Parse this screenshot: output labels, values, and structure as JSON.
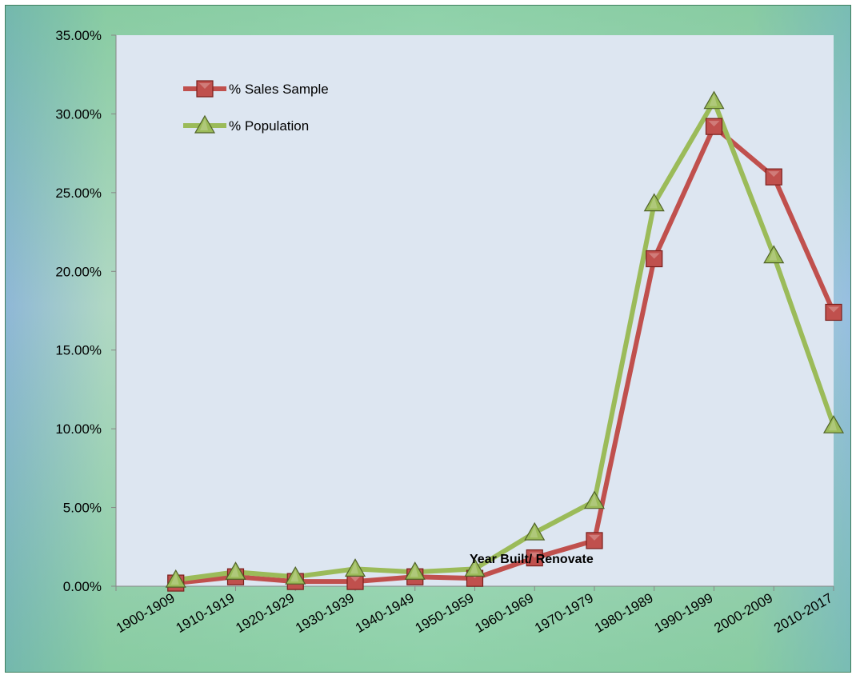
{
  "chart_data": {
    "type": "line",
    "title": "",
    "xlabel": "Year Built/ Renovate",
    "ylabel": "",
    "categories": [
      "1900-1909",
      "1910-1919",
      "1920-1929",
      "1930-1939",
      "1940-1949",
      "1950-1959",
      "1960-1969",
      "1970-1979",
      "1980-1989",
      "1990-1999",
      "2000-2009",
      "2010-2017"
    ],
    "ylim": [
      0,
      35
    ],
    "y_ticks": [
      0,
      5,
      10,
      15,
      20,
      25,
      30,
      35
    ],
    "y_tick_labels": [
      "0.00%",
      "5.00%",
      "10.00%",
      "15.00%",
      "20.00%",
      "25.00%",
      "30.00%",
      "35.00%"
    ],
    "legend_position": "top-left",
    "grid": false,
    "series": [
      {
        "name": "% Sales Sample",
        "color": "#c0504d",
        "marker": "square",
        "values": [
          0.2,
          0.6,
          0.3,
          0.3,
          0.6,
          0.5,
          1.8,
          2.9,
          20.8,
          29.2,
          26.0,
          17.4
        ]
      },
      {
        "name": "% Population",
        "color": "#9bbb59",
        "marker": "triangle",
        "values": [
          0.4,
          0.9,
          0.6,
          1.1,
          0.9,
          1.1,
          3.4,
          5.4,
          24.3,
          30.8,
          21.0,
          10.2
        ]
      }
    ]
  }
}
